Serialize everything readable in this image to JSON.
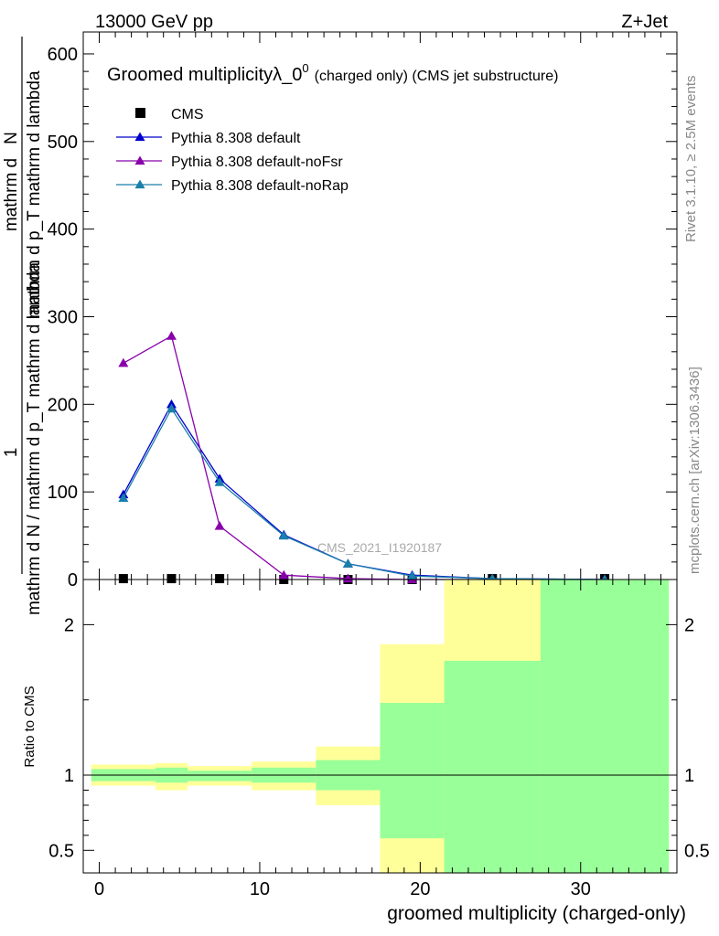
{
  "header": {
    "left": "13000 GeV pp",
    "right": "Z+Jet"
  },
  "side_labels": {
    "rivet": "Rivet 3.1.10, ≥ 2.5M events",
    "mcplots": "mcplots.cern.ch [arXiv:1306.3436]"
  },
  "chart_data": [
    {
      "type": "line",
      "title_main": "Groomed multiplicityλ_0",
      "title_sup": "0",
      "title_tail": "(charged only) (CMS jet substructure)",
      "ylabel_numerator": "1",
      "ylabel_denominator": "mathrm d N / mathrm d p_T mathrm d lambda",
      "ylabel_alt": "mathrm d",
      "ylabel_alt2": "N",
      "ylabel_alt3": "mathrm d p_T mathrm d lambda",
      "watermark": "CMS_2021_I1920187",
      "xlim": [
        -1,
        36
      ],
      "ylim": [
        0,
        625
      ],
      "yticks": [
        "0",
        "100",
        "200",
        "300",
        "400",
        "500",
        "600"
      ],
      "ytick_values": [
        0,
        100,
        200,
        300,
        400,
        500,
        600
      ],
      "legend_position": "top-left",
      "series": [
        {
          "name": "CMS",
          "marker": "square",
          "color": "#000000",
          "x": [
            1.5,
            4.5,
            7.5,
            11.5,
            15.5,
            19.5,
            24.5,
            31.5
          ],
          "y": [
            1,
            1,
            1,
            0,
            0,
            0,
            1,
            1
          ]
        },
        {
          "name": "Pythia 8.308 default",
          "marker": "triangle",
          "color": "#0000cc",
          "x": [
            1.5,
            4.5,
            7.5,
            11.5,
            15.5,
            19.5,
            24.5,
            31.5
          ],
          "y": [
            97,
            200,
            115,
            51,
            18,
            5,
            1,
            0
          ]
        },
        {
          "name": "Pythia 8.308 default-noFsr",
          "marker": "triangle",
          "color": "#8800aa",
          "x": [
            1.5,
            4.5,
            7.5,
            11.5,
            15.5,
            19.5,
            24.5,
            31.5
          ],
          "y": [
            247,
            278,
            61,
            5,
            1,
            0,
            0,
            0
          ]
        },
        {
          "name": "Pythia 8.308 default-noRap",
          "marker": "triangle",
          "color": "#1a7faa",
          "x": [
            1.5,
            4.5,
            7.5,
            11.5,
            15.5,
            19.5,
            24.5,
            31.5
          ],
          "y": [
            93,
            195,
            111,
            50,
            18,
            4,
            1,
            0
          ]
        }
      ]
    },
    {
      "type": "area",
      "ylabel": "Ratio to CMS",
      "xlabel": "groomed multiplicity (charged-only)",
      "xlim": [
        -1,
        36
      ],
      "ylim": [
        0.35,
        2.3
      ],
      "xticks": [
        "0",
        "10",
        "20",
        "30"
      ],
      "xtick_values": [
        0,
        10,
        20,
        30
      ],
      "yticks": [
        "0.5",
        "1",
        "2"
      ],
      "ytick_values": [
        0.5,
        1,
        2
      ],
      "reference_line": 1,
      "band_colors": {
        "outer": "#ffff99",
        "inner": "#99ff99"
      },
      "bins": [
        {
          "xlo": -0.5,
          "xhi": 3.5,
          "outer": [
            0.93,
            1.07
          ],
          "inner": [
            0.96,
            1.04
          ]
        },
        {
          "xlo": 3.5,
          "xhi": 5.5,
          "outer": [
            0.9,
            1.08
          ],
          "inner": [
            0.95,
            1.05
          ]
        },
        {
          "xlo": 5.5,
          "xhi": 9.5,
          "outer": [
            0.93,
            1.06
          ],
          "inner": [
            0.96,
            1.03
          ]
        },
        {
          "xlo": 9.5,
          "xhi": 13.5,
          "outer": [
            0.9,
            1.09
          ],
          "inner": [
            0.95,
            1.05
          ]
        },
        {
          "xlo": 13.5,
          "xhi": 17.5,
          "outer": [
            0.8,
            1.19
          ],
          "inner": [
            0.9,
            1.1
          ]
        },
        {
          "xlo": 17.5,
          "xhi": 21.5,
          "outer": [
            0.35,
            1.87
          ],
          "inner": [
            0.58,
            1.48
          ]
        },
        {
          "xlo": 21.5,
          "xhi": 27.5,
          "outer": [
            0.35,
            2.3
          ],
          "inner": [
            0.35,
            1.76
          ]
        },
        {
          "xlo": 27.5,
          "xhi": 35.5,
          "outer": [
            0.35,
            2.3
          ],
          "inner": [
            0.35,
            2.3
          ]
        }
      ]
    }
  ]
}
